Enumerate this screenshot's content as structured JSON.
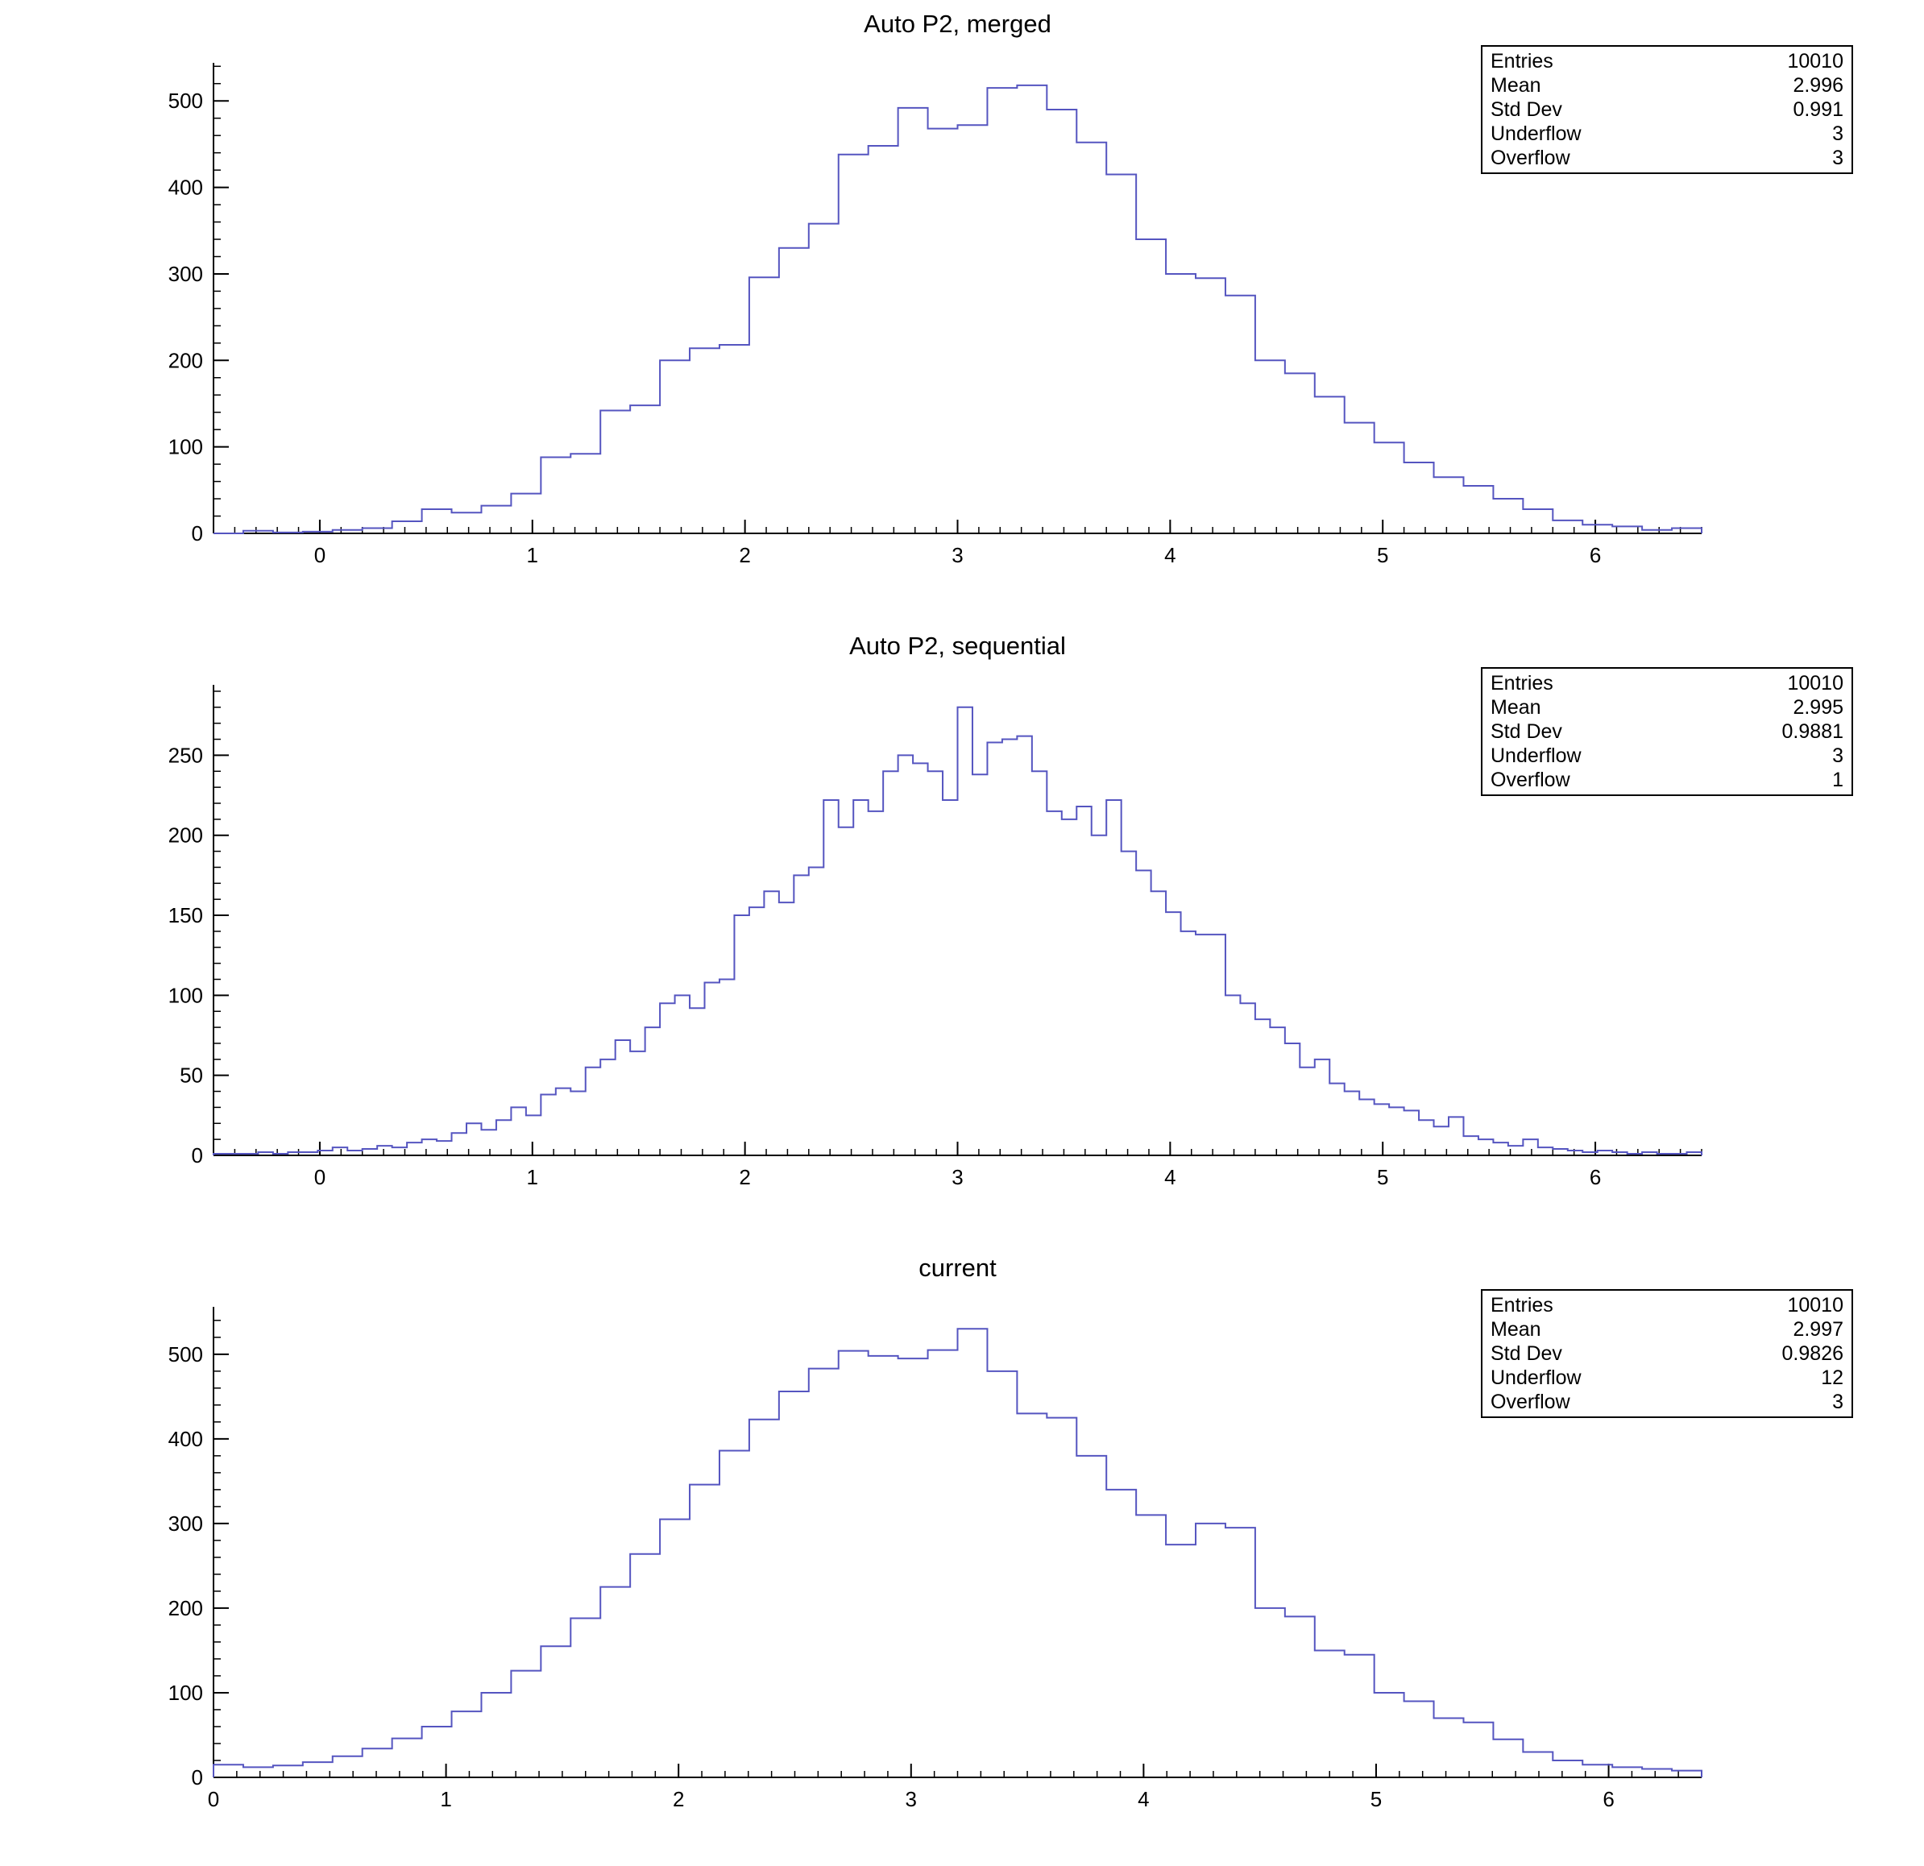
{
  "stats_labels": {
    "entries": "Entries",
    "mean": "Mean",
    "std_dev": "Std Dev",
    "underflow": "Underflow",
    "overflow": "Overflow"
  },
  "chart_data": [
    {
      "type": "bar",
      "title": "Auto P2, merged",
      "xlabel": "",
      "ylabel": "",
      "x_range": [
        -0.5,
        6.5
      ],
      "y_range": [
        0,
        544
      ],
      "bin_width": 0.14,
      "x_ticks": [
        0,
        1,
        2,
        3,
        4,
        5,
        6
      ],
      "y_ticks": [
        0,
        100,
        200,
        300,
        400,
        500
      ],
      "grid": false,
      "legend": "none",
      "line_color": "#5555c0",
      "values": [
        0,
        3,
        1,
        2,
        4,
        6,
        14,
        28,
        24,
        32,
        46,
        88,
        92,
        142,
        148,
        200,
        214,
        218,
        296,
        330,
        358,
        438,
        448,
        492,
        468,
        472,
        515,
        518,
        490,
        452,
        415,
        340,
        300,
        295,
        275,
        200,
        185,
        158,
        128,
        105,
        82,
        65,
        55,
        40,
        28,
        15,
        10,
        8,
        4,
        6
      ],
      "stats": {
        "entries": "10010",
        "mean": "2.996",
        "std_dev": "0.991",
        "underflow": "3",
        "overflow": "3"
      }
    },
    {
      "type": "bar",
      "title": "Auto P2, sequential",
      "xlabel": "",
      "ylabel": "",
      "x_range": [
        -0.5,
        6.5
      ],
      "y_range": [
        0,
        294
      ],
      "bin_width": 0.07,
      "x_ticks": [
        0,
        1,
        2,
        3,
        4,
        5,
        6
      ],
      "y_ticks": [
        0,
        50,
        100,
        150,
        200,
        250
      ],
      "grid": false,
      "legend": "none",
      "line_color": "#5555c0",
      "values": [
        1,
        1,
        1,
        2,
        1,
        2,
        2,
        3,
        5,
        3,
        4,
        6,
        5,
        8,
        10,
        9,
        14,
        20,
        16,
        22,
        30,
        25,
        38,
        42,
        40,
        55,
        60,
        72,
        65,
        80,
        95,
        100,
        92,
        108,
        110,
        150,
        155,
        165,
        158,
        175,
        180,
        222,
        205,
        222,
        215,
        240,
        250,
        245,
        240,
        222,
        280,
        238,
        258,
        260,
        262,
        240,
        215,
        210,
        218,
        200,
        222,
        190,
        178,
        165,
        152,
        140,
        138,
        138,
        100,
        95,
        85,
        80,
        70,
        55,
        60,
        45,
        40,
        35,
        32,
        30,
        28,
        22,
        18,
        24,
        12,
        10,
        8,
        6,
        10,
        5,
        4,
        3,
        2,
        3,
        2,
        1,
        2,
        1,
        1,
        2
      ],
      "stats": {
        "entries": "10010",
        "mean": "2.995",
        "std_dev": "0.9881",
        "underflow": "3",
        "overflow": "1"
      }
    },
    {
      "type": "bar",
      "title": "current",
      "xlabel": "",
      "ylabel": "",
      "x_range": [
        0,
        6.4
      ],
      "y_range": [
        0,
        556
      ],
      "bin_width": 0.128,
      "x_ticks": [
        0,
        1,
        2,
        3,
        4,
        5,
        6
      ],
      "y_ticks": [
        0,
        100,
        200,
        300,
        400,
        500
      ],
      "grid": false,
      "legend": "none",
      "line_color": "#5555c0",
      "values": [
        15,
        12,
        14,
        18,
        25,
        34,
        46,
        60,
        78,
        100,
        126,
        155,
        188,
        225,
        264,
        305,
        346,
        386,
        423,
        456,
        483,
        504,
        498,
        495,
        505,
        530,
        480,
        430,
        425,
        380,
        340,
        310,
        275,
        300,
        295,
        200,
        190,
        150,
        145,
        100,
        90,
        70,
        65,
        45,
        30,
        20,
        15,
        12,
        10,
        8
      ],
      "stats": {
        "entries": "10010",
        "mean": "2.997",
        "std_dev": "0.9826",
        "underflow": "12",
        "overflow": "3"
      }
    }
  ]
}
